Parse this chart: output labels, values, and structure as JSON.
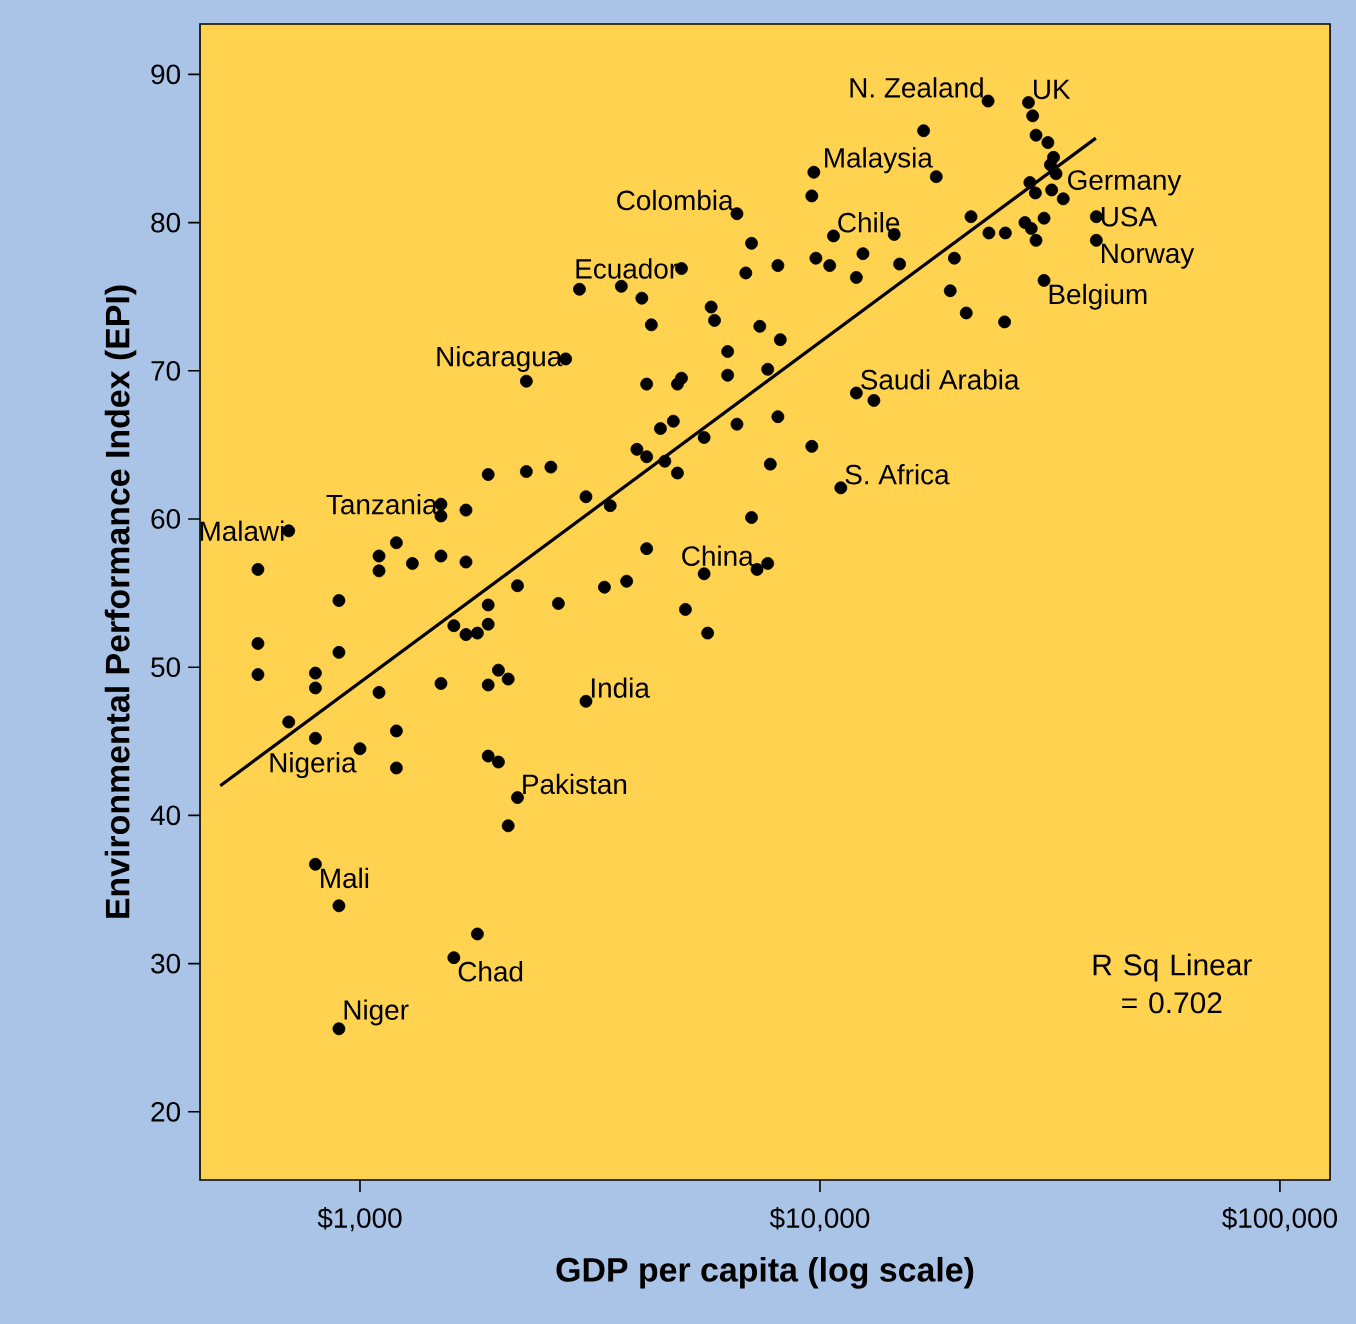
{
  "chart_data": {
    "type": "scatter",
    "xlabel": "GDP per capita (log scale)",
    "ylabel": "Environmental Performance Index (EPI)",
    "log": "x",
    "xlim": [
      449,
      128500
    ],
    "ylim": [
      15.4,
      93.4
    ],
    "xticks": [
      {
        "value": 1000,
        "label": "$1,000"
      },
      {
        "value": 10000,
        "label": "$10,000"
      },
      {
        "value": 100000,
        "label": "$100,000"
      }
    ],
    "yticks": [
      20,
      30,
      40,
      50,
      60,
      70,
      80,
      90
    ],
    "series": [
      {
        "color": "#000000",
        "marker": "circle",
        "x": [
          2800,
          2300,
          1900,
          2300,
          2600,
          3100,
          1500,
          1500,
          1700,
          700,
          1200,
          1100,
          1100,
          1300,
          1500,
          1700,
          600,
          900,
          2200,
          2700,
          1900,
          1600,
          1700,
          1800,
          1900,
          600,
          900,
          600,
          800,
          800,
          1100,
          1500,
          1900,
          2000,
          2100,
          3100,
          700,
          800,
          1200,
          1000,
          1200,
          1900,
          2000,
          2200,
          2100,
          800,
          900,
          1800,
          1600,
          900,
          6600,
          10700,
          14500,
          7100,
          5000,
          6900,
          8100,
          9800,
          10500,
          12400,
          12000,
          14900,
          19600,
          19200,
          3000,
          3700,
          4100,
          5800,
          5900,
          4300,
          7400,
          8200,
          6300,
          5000,
          4900,
          4200,
          6300,
          7700,
          12000,
          13100,
          4800,
          4500,
          6600,
          8100,
          5600,
          4000,
          4200,
          4600,
          4900,
          9600,
          7800,
          11100,
          3500,
          7100,
          4200,
          7300,
          7700,
          5600,
          3400,
          3800,
          5100,
          5700,
          23200,
          28400,
          29000,
          16800,
          29500,
          31300,
          32200,
          31700,
          9700,
          17900,
          9600,
          28600,
          29400,
          31900,
          33800,
          39900,
          30700,
          21300,
          27900,
          28800,
          29500,
          23300,
          25300,
          39900,
          30700,
          20800,
          25200,
          32600
        ],
        "values": [
          70.8,
          69.3,
          63.0,
          63.2,
          63.5,
          61.5,
          61.0,
          60.2,
          60.6,
          59.2,
          58.4,
          57.5,
          56.5,
          57.0,
          57.5,
          57.1,
          56.6,
          54.5,
          55.5,
          54.3,
          54.2,
          52.8,
          52.2,
          52.3,
          52.9,
          51.6,
          51.0,
          49.5,
          49.6,
          48.6,
          48.3,
          48.9,
          48.8,
          49.8,
          49.2,
          47.7,
          46.3,
          45.2,
          45.7,
          44.5,
          43.2,
          44.0,
          43.6,
          41.2,
          39.3,
          36.7,
          33.9,
          32.0,
          30.4,
          25.6,
          80.6,
          79.1,
          79.2,
          78.6,
          76.9,
          76.6,
          77.1,
          77.6,
          77.1,
          77.9,
          76.3,
          77.2,
          77.6,
          75.4,
          75.5,
          75.7,
          74.9,
          74.3,
          73.4,
          73.1,
          73.0,
          72.1,
          71.3,
          69.5,
          69.1,
          69.1,
          69.7,
          70.1,
          68.5,
          68.0,
          66.6,
          66.1,
          66.4,
          66.9,
          65.5,
          64.7,
          64.2,
          63.9,
          63.1,
          64.9,
          63.7,
          62.1,
          60.9,
          60.1,
          58.0,
          56.6,
          57.0,
          56.3,
          55.4,
          55.8,
          53.9,
          52.3,
          88.2,
          88.1,
          87.2,
          86.2,
          85.9,
          85.4,
          84.4,
          83.9,
          83.4,
          83.1,
          81.8,
          82.7,
          82.0,
          82.2,
          81.6,
          80.4,
          80.3,
          80.4,
          80.0,
          79.6,
          78.8,
          79.3,
          79.3,
          78.8,
          76.1,
          73.9,
          73.3,
          83.3
        ]
      },
      {
        "type": "line",
        "color": "#000000",
        "x": [
          497,
          39800
        ],
        "values": [
          42.0,
          85.7
        ]
      }
    ],
    "annotations": [
      {
        "text": "Nicaragua",
        "x": 2800,
        "y": 70.8
      },
      {
        "text": "Tanzania",
        "x": 1500,
        "y": 61.0
      },
      {
        "text": "Malawi",
        "x": 700,
        "y": 59.2
      },
      {
        "text": "Nigeria",
        "x": 1000,
        "y": 44.5
      },
      {
        "text": "Pakistan",
        "x": 2200,
        "y": 41.2
      },
      {
        "text": "India",
        "x": 3100,
        "y": 47.7
      },
      {
        "text": "Mali",
        "x": 800,
        "y": 36.7
      },
      {
        "text": "Chad",
        "x": 1600,
        "y": 30.4
      },
      {
        "text": "Niger",
        "x": 900,
        "y": 25.6
      },
      {
        "text": "China",
        "x": 7300,
        "y": 56.6
      },
      {
        "text": "S. Africa",
        "x": 11100,
        "y": 62.1
      },
      {
        "text": "Saudi Arabia",
        "x": 12000,
        "y": 68.5
      },
      {
        "text": "Ecuador",
        "x": 5000,
        "y": 76.9
      },
      {
        "text": "Colombia",
        "x": 6600,
        "y": 80.6
      },
      {
        "text": "Chile",
        "x": 10700,
        "y": 79.1
      },
      {
        "text": "Malaysia",
        "x": 17900,
        "y": 83.1
      },
      {
        "text": "N. Zealand",
        "x": 23200,
        "y": 88.2
      },
      {
        "text": "UK",
        "x": 28400,
        "y": 88.1
      },
      {
        "text": "Germany",
        "x": 33800,
        "y": 81.6
      },
      {
        "text": "USA",
        "x": 39900,
        "y": 80.4
      },
      {
        "text": "Norway",
        "x": 39900,
        "y": 78.8
      },
      {
        "text": "Belgium",
        "x": 30700,
        "y": 76.1
      },
      "R Sq Linear = 0.702"
    ]
  }
}
